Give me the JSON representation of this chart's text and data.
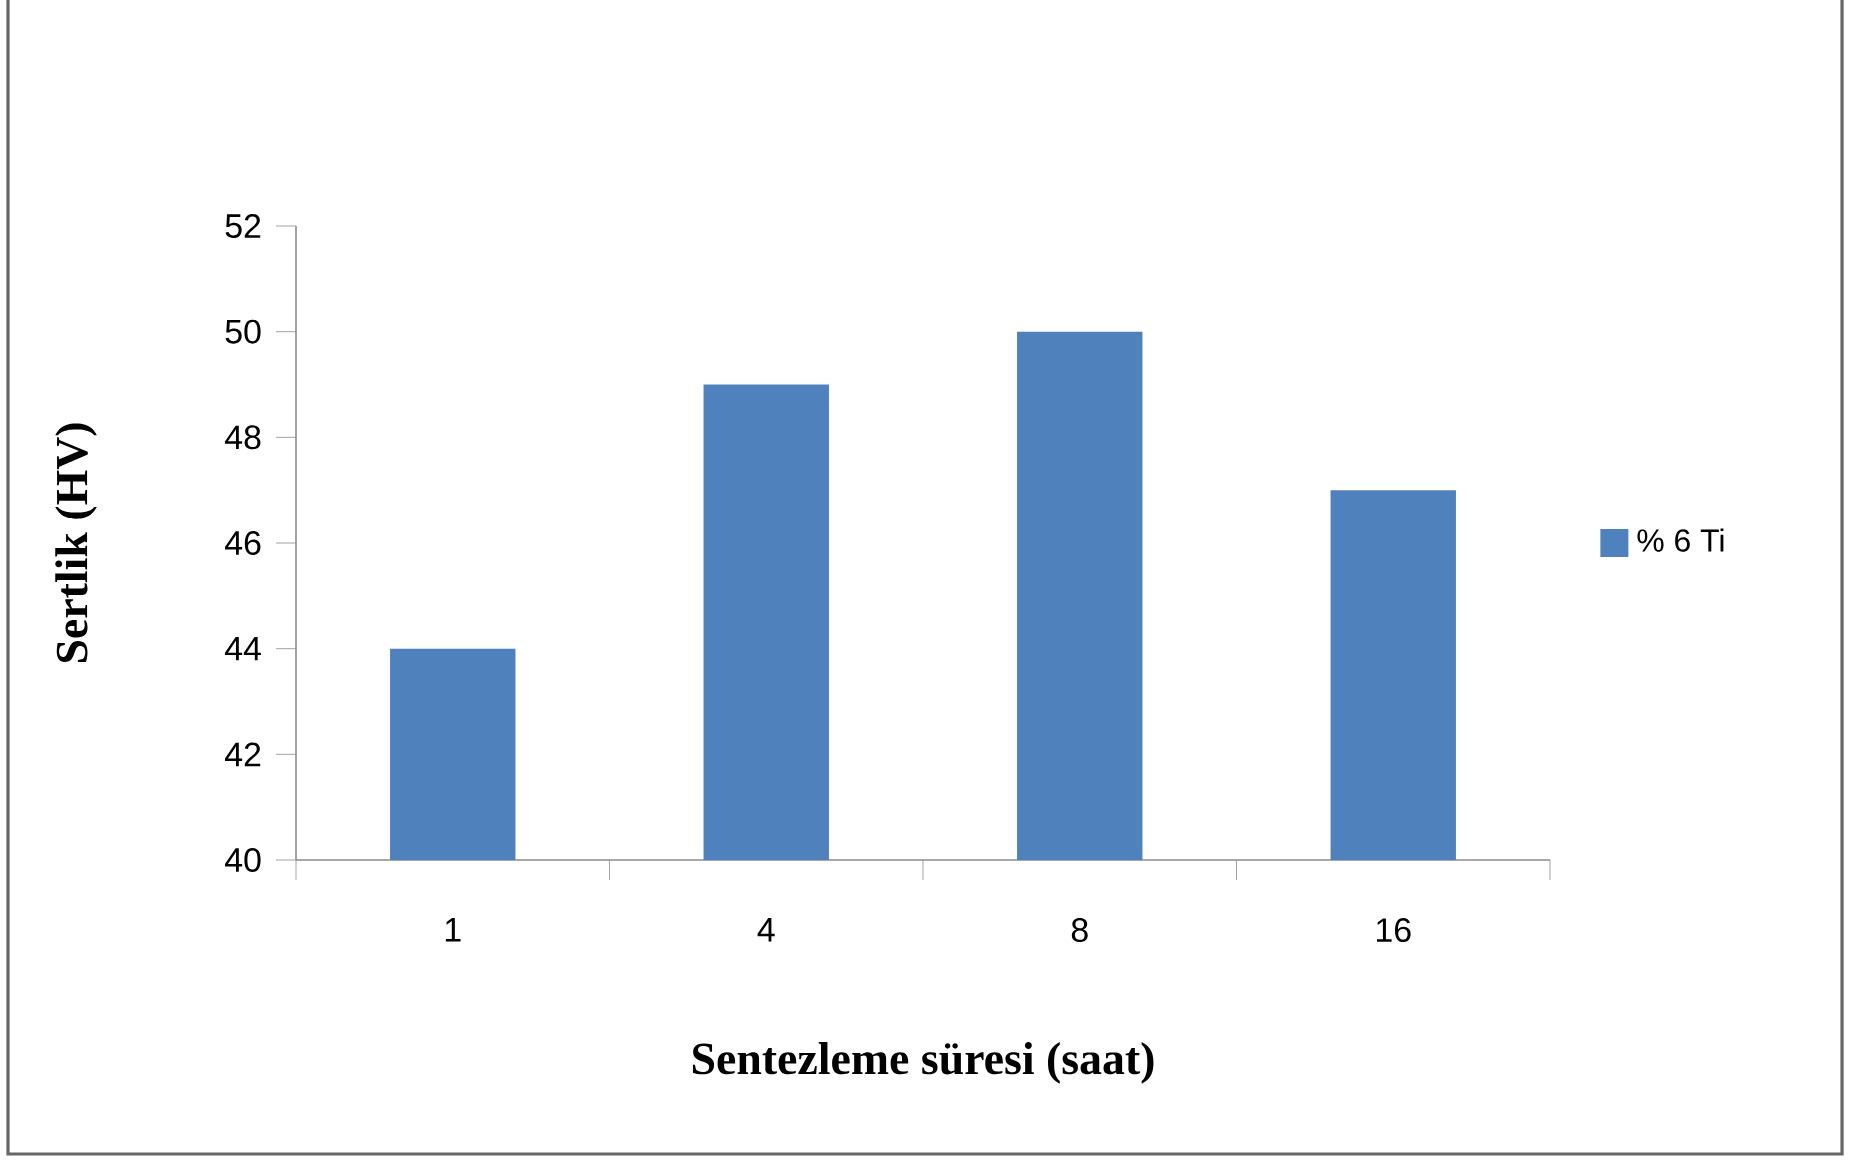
{
  "chart_data": {
    "type": "bar",
    "categories": [
      "1",
      "4",
      "8",
      "16"
    ],
    "series": [
      {
        "name": "% 6  Ti",
        "color": "#4f81bd",
        "values": [
          44,
          49,
          50,
          47
        ]
      }
    ],
    "xlabel": "Sentezleme süresi (saat)",
    "ylabel": "Sertlik (HV)",
    "ylim": [
      40,
      52
    ],
    "yticks": [
      40,
      42,
      44,
      46,
      48,
      50,
      52
    ],
    "grid": false,
    "legend": "right"
  }
}
